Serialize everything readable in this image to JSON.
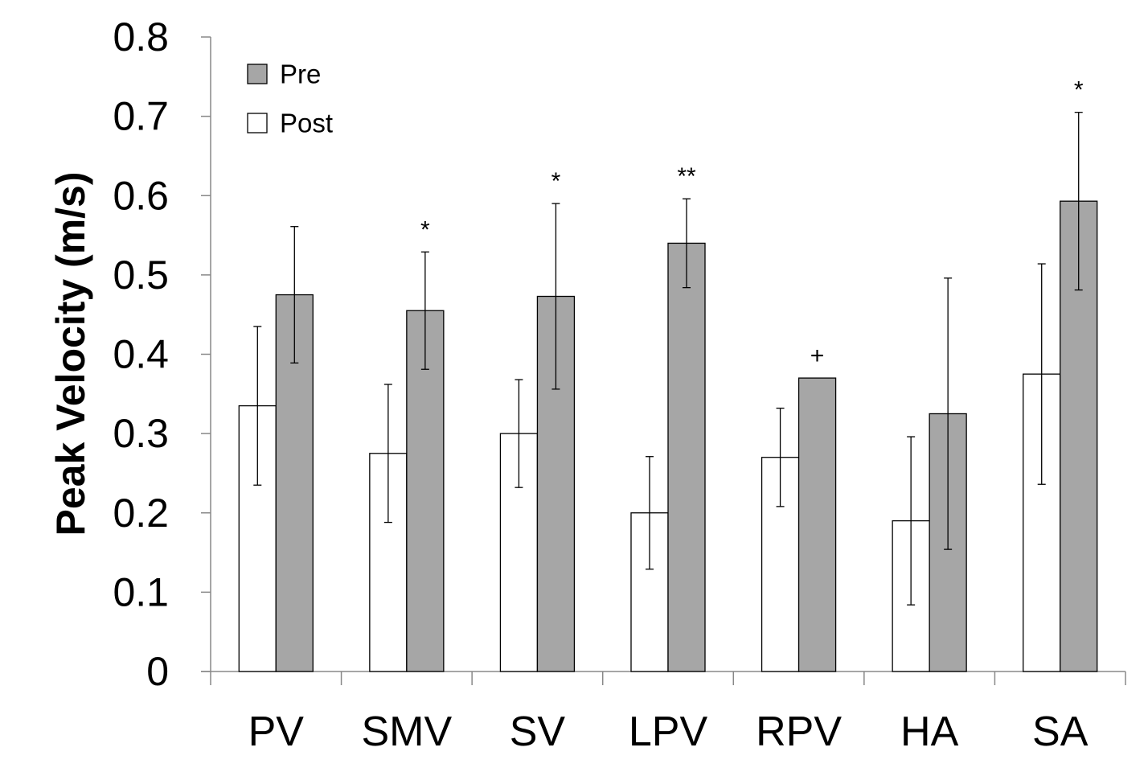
{
  "chart_data": {
    "type": "bar",
    "title": "",
    "xlabel": "",
    "ylabel": "Peak Velocity (m/s)",
    "ylim": [
      0,
      0.8
    ],
    "yticks": [
      "0",
      "0.1",
      "0.2",
      "0.3",
      "0.4",
      "0.5",
      "0.6",
      "0.7",
      "0.8"
    ],
    "categories": [
      "PV",
      "SMV",
      "SV",
      "LPV",
      "RPV",
      "HA",
      "SA"
    ],
    "series": [
      {
        "name": "Post",
        "color": "#ffffff",
        "values": [
          0.335,
          0.275,
          0.3,
          0.2,
          0.27,
          0.19,
          0.375
        ],
        "errors": [
          0.1,
          0.087,
          0.068,
          0.071,
          0.062,
          0.106,
          0.139
        ]
      },
      {
        "name": "Pre",
        "color": "#a6a6a6",
        "values": [
          0.475,
          0.455,
          0.473,
          0.54,
          0.37,
          0.325,
          0.593
        ],
        "errors": [
          0.086,
          0.074,
          0.117,
          0.056,
          0,
          0.171,
          0.112
        ]
      }
    ],
    "annotations": [
      "",
      "*",
      "*",
      "**",
      "+",
      "",
      "*"
    ],
    "legend": {
      "position": "top-left",
      "entries": [
        {
          "label": "Pre",
          "color": "#a6a6a6"
        },
        {
          "label": "Post",
          "color": "#ffffff"
        }
      ]
    }
  }
}
